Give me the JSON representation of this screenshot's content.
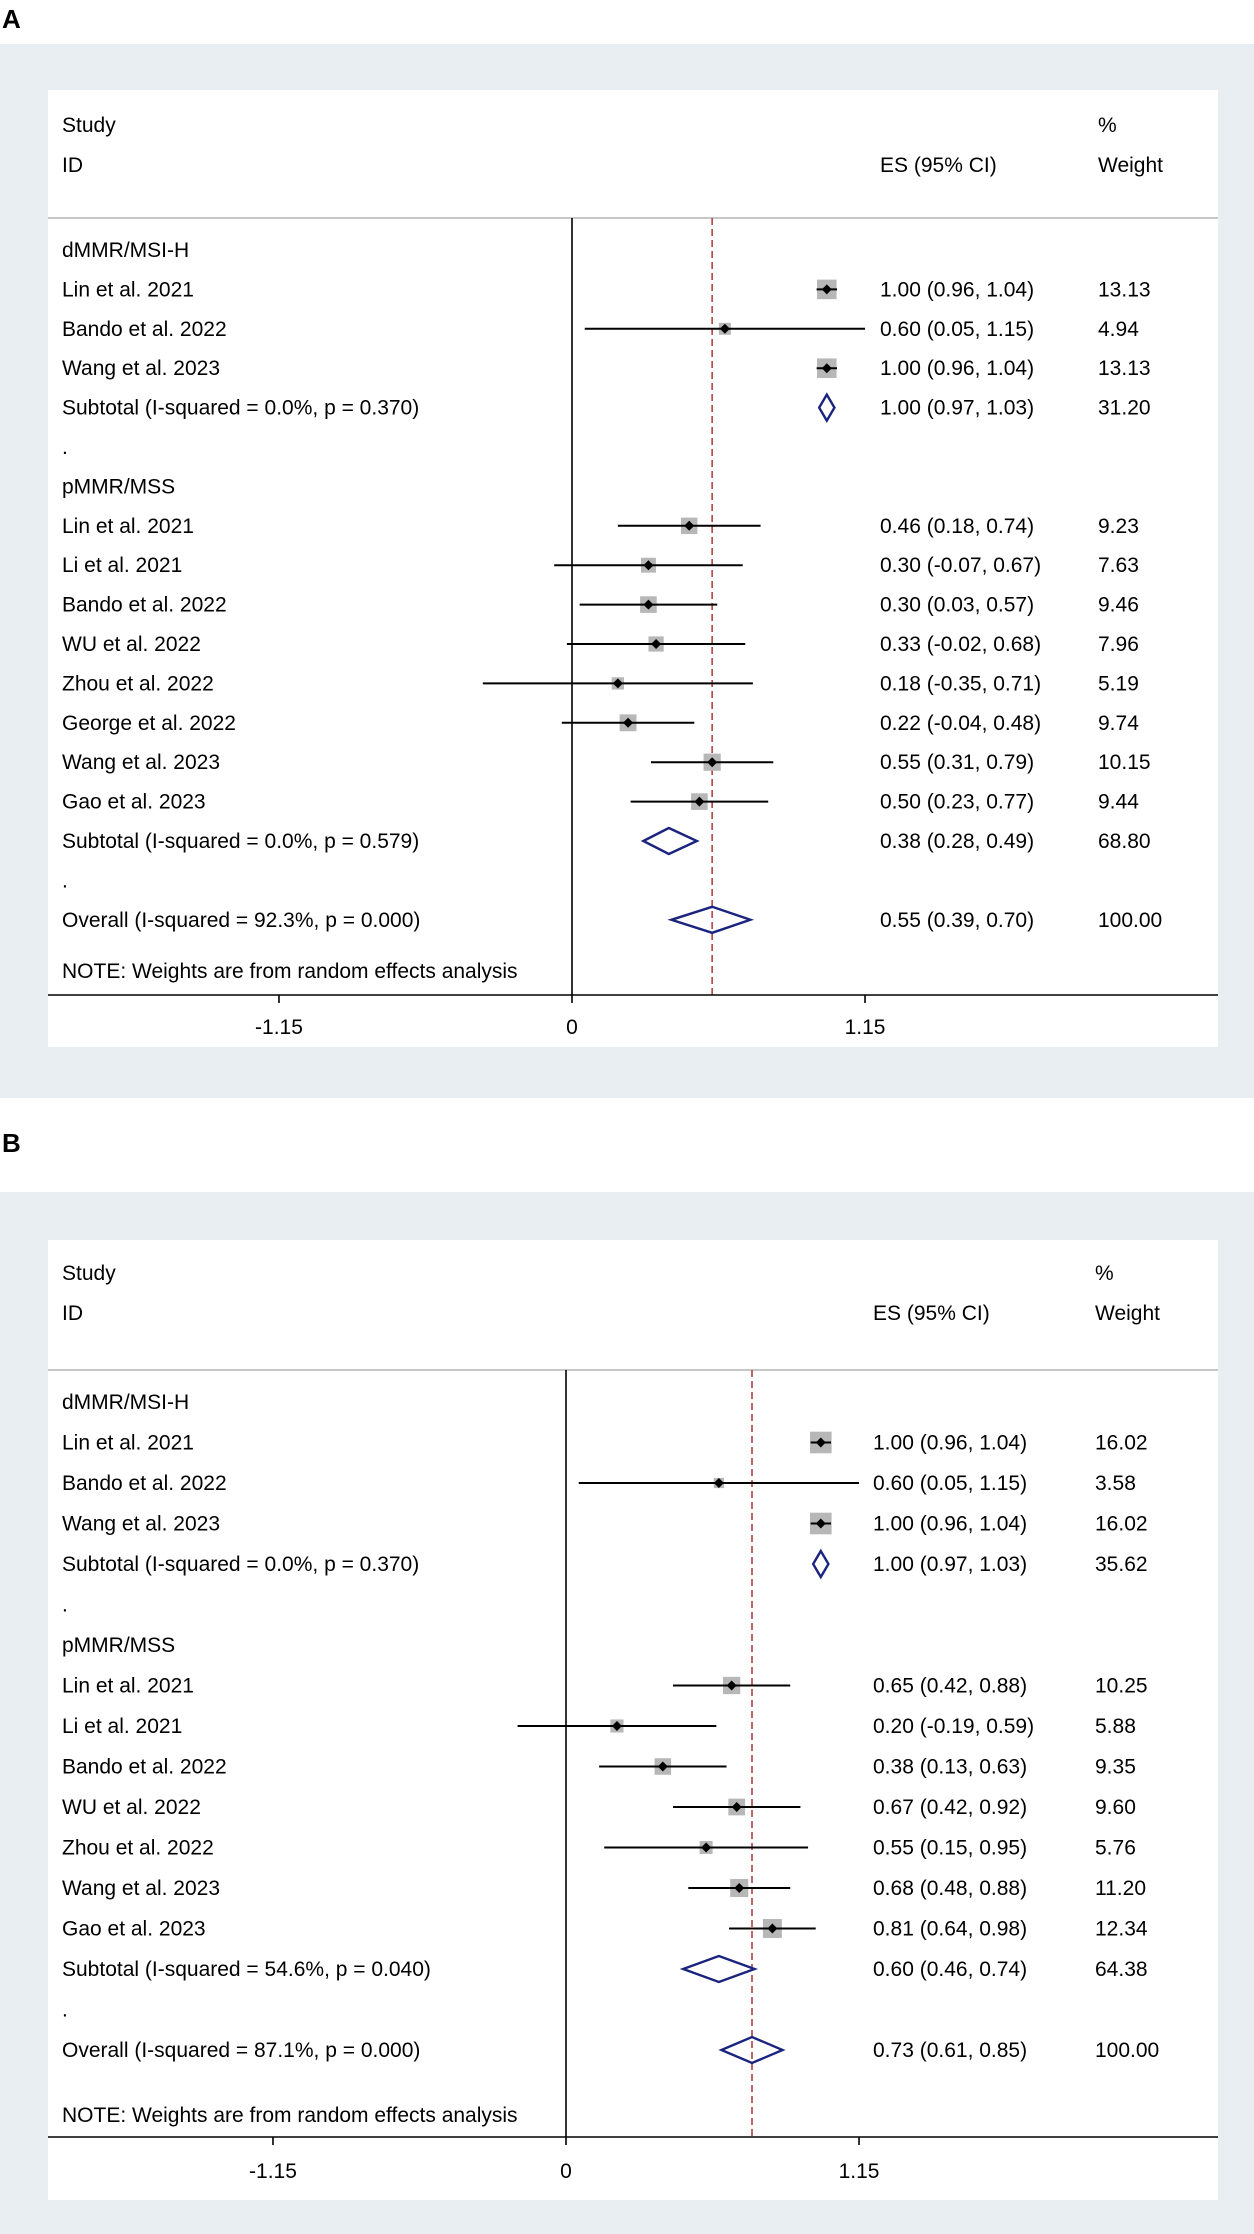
{
  "colors": {
    "panel_bg": "#e8eef2",
    "ref_line": "#b0413e",
    "diamond": "#1a237e",
    "box": "#b7b7b7"
  },
  "axis_ticks": [
    "-1.15",
    "0",
    "1.15"
  ],
  "chart_data": [
    {
      "type": "forest",
      "panel_label": "A",
      "header": {
        "study": "Study",
        "id": "ID",
        "es": "ES (95% CI)",
        "pct": "%",
        "weight": "Weight"
      },
      "x_ticks": [
        -1.15,
        0,
        1.15
      ],
      "overall_line": 0.55,
      "note": "NOTE: Weights are from random effects analysis",
      "rows": [
        {
          "type": "group",
          "label": "dMMR/MSI-H"
        },
        {
          "type": "study",
          "label": "Lin et al. 2021",
          "es": 1.0,
          "lo": 0.96,
          "hi": 1.04,
          "es_text": "1.00 (0.96, 1.04)",
          "weight": "13.13"
        },
        {
          "type": "study",
          "label": "Bando et al. 2022",
          "es": 0.6,
          "lo": 0.05,
          "hi": 1.15,
          "es_text": "0.60 (0.05, 1.15)",
          "weight": "4.94"
        },
        {
          "type": "study",
          "label": "Wang et al. 2023",
          "es": 1.0,
          "lo": 0.96,
          "hi": 1.04,
          "es_text": "1.00 (0.96, 1.04)",
          "weight": "13.13"
        },
        {
          "type": "subtotal",
          "label": "Subtotal  (I-squared = 0.0%, p = 0.370)",
          "es": 1.0,
          "lo": 0.97,
          "hi": 1.03,
          "es_text": "1.00 (0.97, 1.03)",
          "weight": "31.20"
        },
        {
          "type": "blank",
          "label": "."
        },
        {
          "type": "group",
          "label": "pMMR/MSS"
        },
        {
          "type": "study",
          "label": "Lin et al. 2021",
          "es": 0.46,
          "lo": 0.18,
          "hi": 0.74,
          "es_text": "0.46 (0.18, 0.74)",
          "weight": "9.23"
        },
        {
          "type": "study",
          "label": "Li et al. 2021",
          "es": 0.3,
          "lo": -0.07,
          "hi": 0.67,
          "es_text": "0.30 (-0.07, 0.67)",
          "weight": "7.63"
        },
        {
          "type": "study",
          "label": "Bando et al. 2022",
          "es": 0.3,
          "lo": 0.03,
          "hi": 0.57,
          "es_text": "0.30 (0.03, 0.57)",
          "weight": "9.46"
        },
        {
          "type": "study",
          "label": "WU et al. 2022",
          "es": 0.33,
          "lo": -0.02,
          "hi": 0.68,
          "es_text": "0.33 (-0.02, 0.68)",
          "weight": "7.96"
        },
        {
          "type": "study",
          "label": "Zhou et al. 2022",
          "es": 0.18,
          "lo": -0.35,
          "hi": 0.71,
          "es_text": "0.18 (-0.35, 0.71)",
          "weight": "5.19"
        },
        {
          "type": "study",
          "label": "George et al. 2022",
          "es": 0.22,
          "lo": -0.04,
          "hi": 0.48,
          "es_text": "0.22 (-0.04, 0.48)",
          "weight": "9.74"
        },
        {
          "type": "study",
          "label": "Wang et al. 2023",
          "es": 0.55,
          "lo": 0.31,
          "hi": 0.79,
          "es_text": "0.55 (0.31, 0.79)",
          "weight": "10.15"
        },
        {
          "type": "study",
          "label": "Gao et al. 2023",
          "es": 0.5,
          "lo": 0.23,
          "hi": 0.77,
          "es_text": "0.50 (0.23, 0.77)",
          "weight": "9.44"
        },
        {
          "type": "subtotal",
          "label": "Subtotal  (I-squared = 0.0%, p = 0.579)",
          "es": 0.38,
          "lo": 0.28,
          "hi": 0.49,
          "es_text": "0.38 (0.28, 0.49)",
          "weight": "68.80"
        },
        {
          "type": "blank",
          "label": "."
        },
        {
          "type": "overall",
          "label": "Overall  (I-squared = 92.3%, p = 0.000)",
          "es": 0.55,
          "lo": 0.39,
          "hi": 0.7,
          "es_text": "0.55 (0.39, 0.70)",
          "weight": "100.00"
        }
      ]
    },
    {
      "type": "forest",
      "panel_label": "B",
      "header": {
        "study": "Study",
        "id": "ID",
        "es": "ES (95% CI)",
        "pct": "%",
        "weight": "Weight"
      },
      "x_ticks": [
        -1.15,
        0,
        1.15
      ],
      "overall_line": 0.73,
      "note": "NOTE: Weights are from random effects analysis",
      "rows": [
        {
          "type": "group",
          "label": "dMMR/MSI-H"
        },
        {
          "type": "study",
          "label": "Lin et al. 2021",
          "es": 1.0,
          "lo": 0.96,
          "hi": 1.04,
          "es_text": "1.00 (0.96, 1.04)",
          "weight": "16.02"
        },
        {
          "type": "study",
          "label": "Bando et al. 2022",
          "es": 0.6,
          "lo": 0.05,
          "hi": 1.15,
          "es_text": "0.60 (0.05, 1.15)",
          "weight": "3.58"
        },
        {
          "type": "study",
          "label": "Wang et al. 2023",
          "es": 1.0,
          "lo": 0.96,
          "hi": 1.04,
          "es_text": "1.00 (0.96, 1.04)",
          "weight": "16.02"
        },
        {
          "type": "subtotal",
          "label": "Subtotal  (I-squared = 0.0%, p = 0.370)",
          "es": 1.0,
          "lo": 0.97,
          "hi": 1.03,
          "es_text": "1.00 (0.97, 1.03)",
          "weight": "35.62"
        },
        {
          "type": "blank",
          "label": "."
        },
        {
          "type": "group",
          "label": "pMMR/MSS"
        },
        {
          "type": "study",
          "label": "Lin et al. 2021",
          "es": 0.65,
          "lo": 0.42,
          "hi": 0.88,
          "es_text": "0.65 (0.42, 0.88)",
          "weight": "10.25"
        },
        {
          "type": "study",
          "label": "Li et al. 2021",
          "es": 0.2,
          "lo": -0.19,
          "hi": 0.59,
          "es_text": "0.20 (-0.19, 0.59)",
          "weight": "5.88"
        },
        {
          "type": "study",
          "label": "Bando et al. 2022",
          "es": 0.38,
          "lo": 0.13,
          "hi": 0.63,
          "es_text": "0.38 (0.13, 0.63)",
          "weight": "9.35"
        },
        {
          "type": "study",
          "label": "WU et al. 2022",
          "es": 0.67,
          "lo": 0.42,
          "hi": 0.92,
          "es_text": "0.67 (0.42, 0.92)",
          "weight": "9.60"
        },
        {
          "type": "study",
          "label": "Zhou et al. 2022",
          "es": 0.55,
          "lo": 0.15,
          "hi": 0.95,
          "es_text": "0.55 (0.15, 0.95)",
          "weight": "5.76"
        },
        {
          "type": "study",
          "label": "Wang et al. 2023",
          "es": 0.68,
          "lo": 0.48,
          "hi": 0.88,
          "es_text": "0.68 (0.48, 0.88)",
          "weight": "11.20"
        },
        {
          "type": "study",
          "label": "Gao et al. 2023",
          "es": 0.81,
          "lo": 0.64,
          "hi": 0.98,
          "es_text": "0.81 (0.64, 0.98)",
          "weight": "12.34"
        },
        {
          "type": "subtotal",
          "label": "Subtotal  (I-squared = 54.6%, p = 0.040)",
          "es": 0.6,
          "lo": 0.46,
          "hi": 0.74,
          "es_text": "0.60 (0.46, 0.74)",
          "weight": "64.38"
        },
        {
          "type": "blank",
          "label": "."
        },
        {
          "type": "overall",
          "label": "Overall  (I-squared = 87.1%, p = 0.000)",
          "es": 0.73,
          "lo": 0.61,
          "hi": 0.85,
          "es_text": "0.73 (0.61, 0.85)",
          "weight": "100.00"
        }
      ]
    }
  ]
}
